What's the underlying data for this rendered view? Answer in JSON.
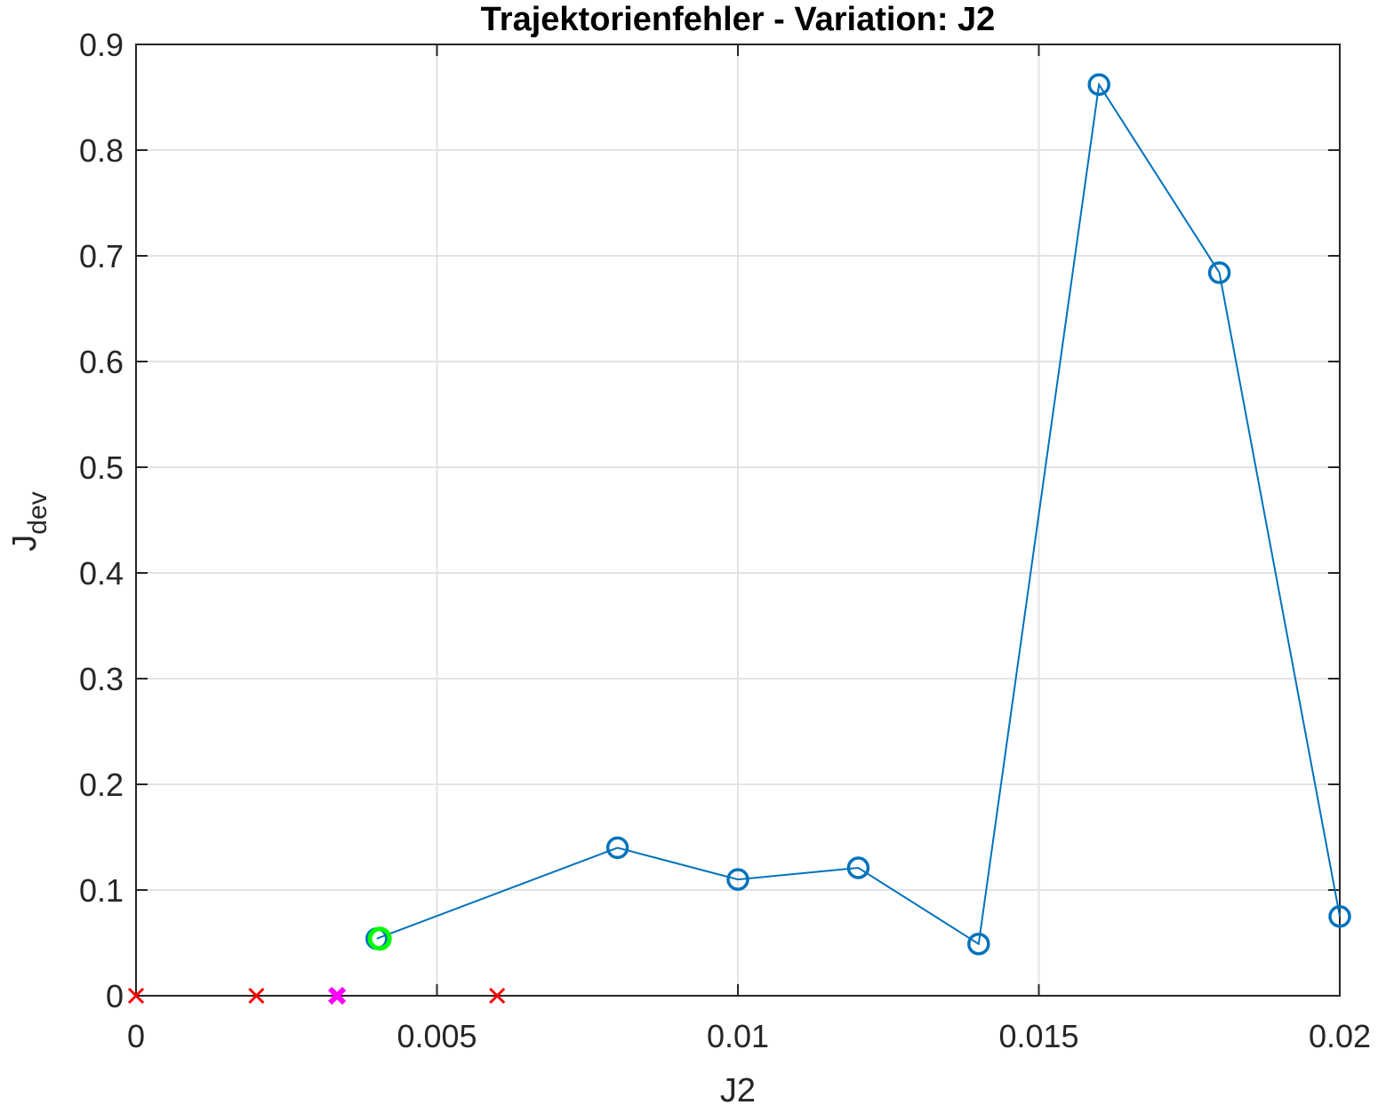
{
  "chart_data": {
    "type": "line",
    "title": "Trajektorienfehler - Variation: J2",
    "xlabel": "J2",
    "ylabel": {
      "main": "J",
      "sub": "dev"
    },
    "xlim": [
      0,
      0.02
    ],
    "ylim": [
      0,
      0.9
    ],
    "xticks": [
      0,
      0.005,
      0.01,
      0.015,
      0.02
    ],
    "xtick_labels": [
      "0",
      "0.005",
      "0.01",
      "0.015",
      "0.02"
    ],
    "yticks": [
      0,
      0.1,
      0.2,
      0.3,
      0.4,
      0.5,
      0.6,
      0.7,
      0.8,
      0.9
    ],
    "ytick_labels": [
      "0",
      "0.1",
      "0.2",
      "0.3",
      "0.4",
      "0.5",
      "0.6",
      "0.7",
      "0.8",
      "0.9"
    ],
    "grid": true,
    "series": [
      {
        "marker": "circle",
        "color": "#0072BD",
        "x": [
          0.004,
          0.008,
          0.01,
          0.012,
          0.014,
          0.016,
          0.018,
          0.02
        ],
        "y": [
          0.054,
          0.14,
          0.11,
          0.121,
          0.049,
          0.862,
          0.684,
          0.075
        ]
      }
    ],
    "highlight_point": {
      "x": 0.00405,
      "y": 0.054,
      "marker": "circle",
      "color": "#00FF00"
    },
    "failed_points": {
      "marker": "x",
      "color": "#FF0000",
      "x": [
        0,
        0.002,
        0.006
      ],
      "y": [
        0,
        0,
        0
      ]
    },
    "special_point": {
      "marker": "bold-x",
      "color": "#FF00FF",
      "x": 0.00334,
      "y": 0
    }
  }
}
